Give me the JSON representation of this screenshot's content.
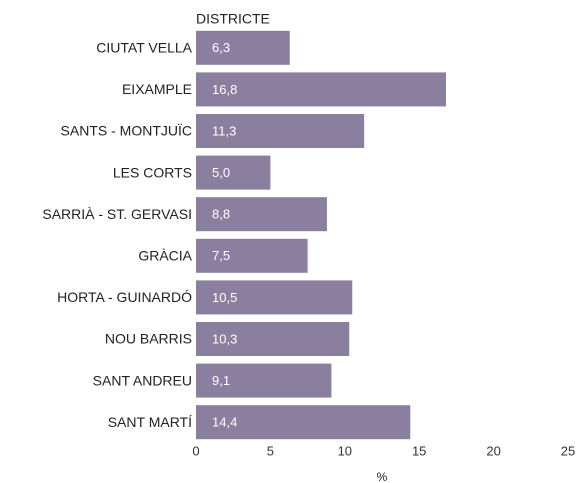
{
  "chart_data": {
    "type": "bar",
    "orientation": "horizontal",
    "y_axis_label": "DISTRICTE",
    "x_axis_label": "%",
    "categories": [
      "CIUTAT VELLA",
      "EIXAMPLE",
      "SANTS - MONTJUÏC",
      "LES CORTS",
      "SARRIÀ - ST. GERVASI",
      "GRÀCIA",
      "HORTA - GUINARDÓ",
      "NOU BARRIS",
      "SANT ANDREU",
      "SANT MARTÍ"
    ],
    "values": [
      6.3,
      16.8,
      11.3,
      5.0,
      8.8,
      7.5,
      10.5,
      10.3,
      9.1,
      14.4
    ],
    "value_labels": [
      "6,3",
      "16,8",
      "11,3",
      "5,0",
      "8,8",
      "7,5",
      "10,5",
      "10,3",
      "9,1",
      "14,4"
    ],
    "color": "#8a7f9e",
    "xlim": [
      0,
      25
    ],
    "xticks": [
      0,
      5,
      10,
      15,
      20,
      25
    ],
    "grid": false
  }
}
